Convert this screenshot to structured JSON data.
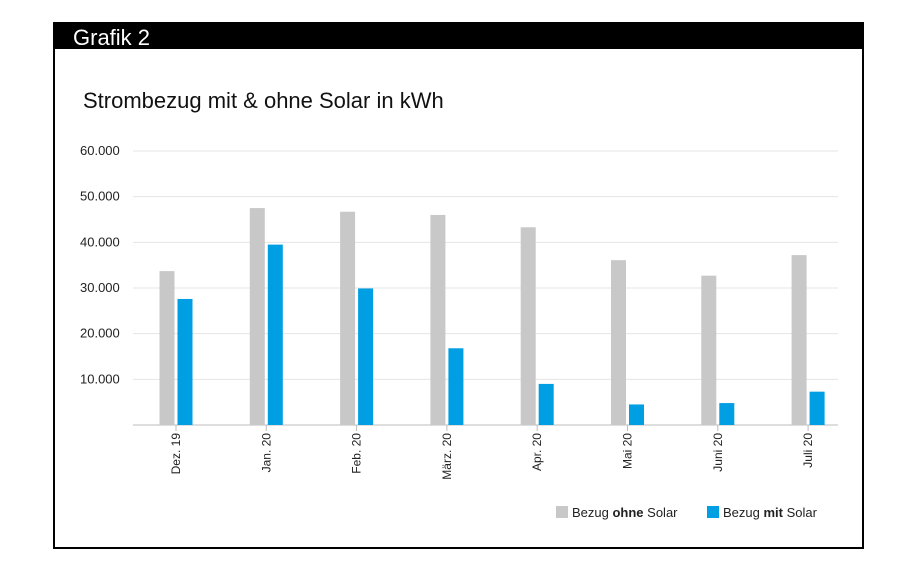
{
  "header": {
    "label": "Grafik 2"
  },
  "chart_data": {
    "type": "bar",
    "title": "Strombezug mit & ohne Solar in kWh",
    "xlabel": "",
    "ylabel": "",
    "categories": [
      "Dez. 19",
      "Jan. 20",
      "Feb. 20",
      "März. 20",
      "Apr. 20",
      "Mai 20",
      "Juni 20",
      "Juli 20"
    ],
    "ylim": [
      0,
      60000
    ],
    "yticks": [
      10000,
      20000,
      30000,
      40000,
      50000,
      60000
    ],
    "ytick_labels": [
      "10.000",
      "20.000",
      "30.000",
      "40.000",
      "50.000",
      "60.000"
    ],
    "grid": true,
    "legend_position": "bottom-right",
    "series": [
      {
        "key": "ohne",
        "legend_prefix": "Bezug ",
        "legend_bold": "ohne",
        "legend_suffix": " Solar",
        "color": "#c8c8c8",
        "values": [
          33700,
          47500,
          46700,
          46000,
          43300,
          36100,
          32700,
          37200
        ]
      },
      {
        "key": "mit",
        "legend_prefix": "Bezug ",
        "legend_bold": "mit",
        "legend_suffix": " Solar",
        "color": "#009fe3",
        "values": [
          27600,
          39500,
          29900,
          16800,
          9000,
          4500,
          4800,
          7300
        ]
      }
    ]
  }
}
